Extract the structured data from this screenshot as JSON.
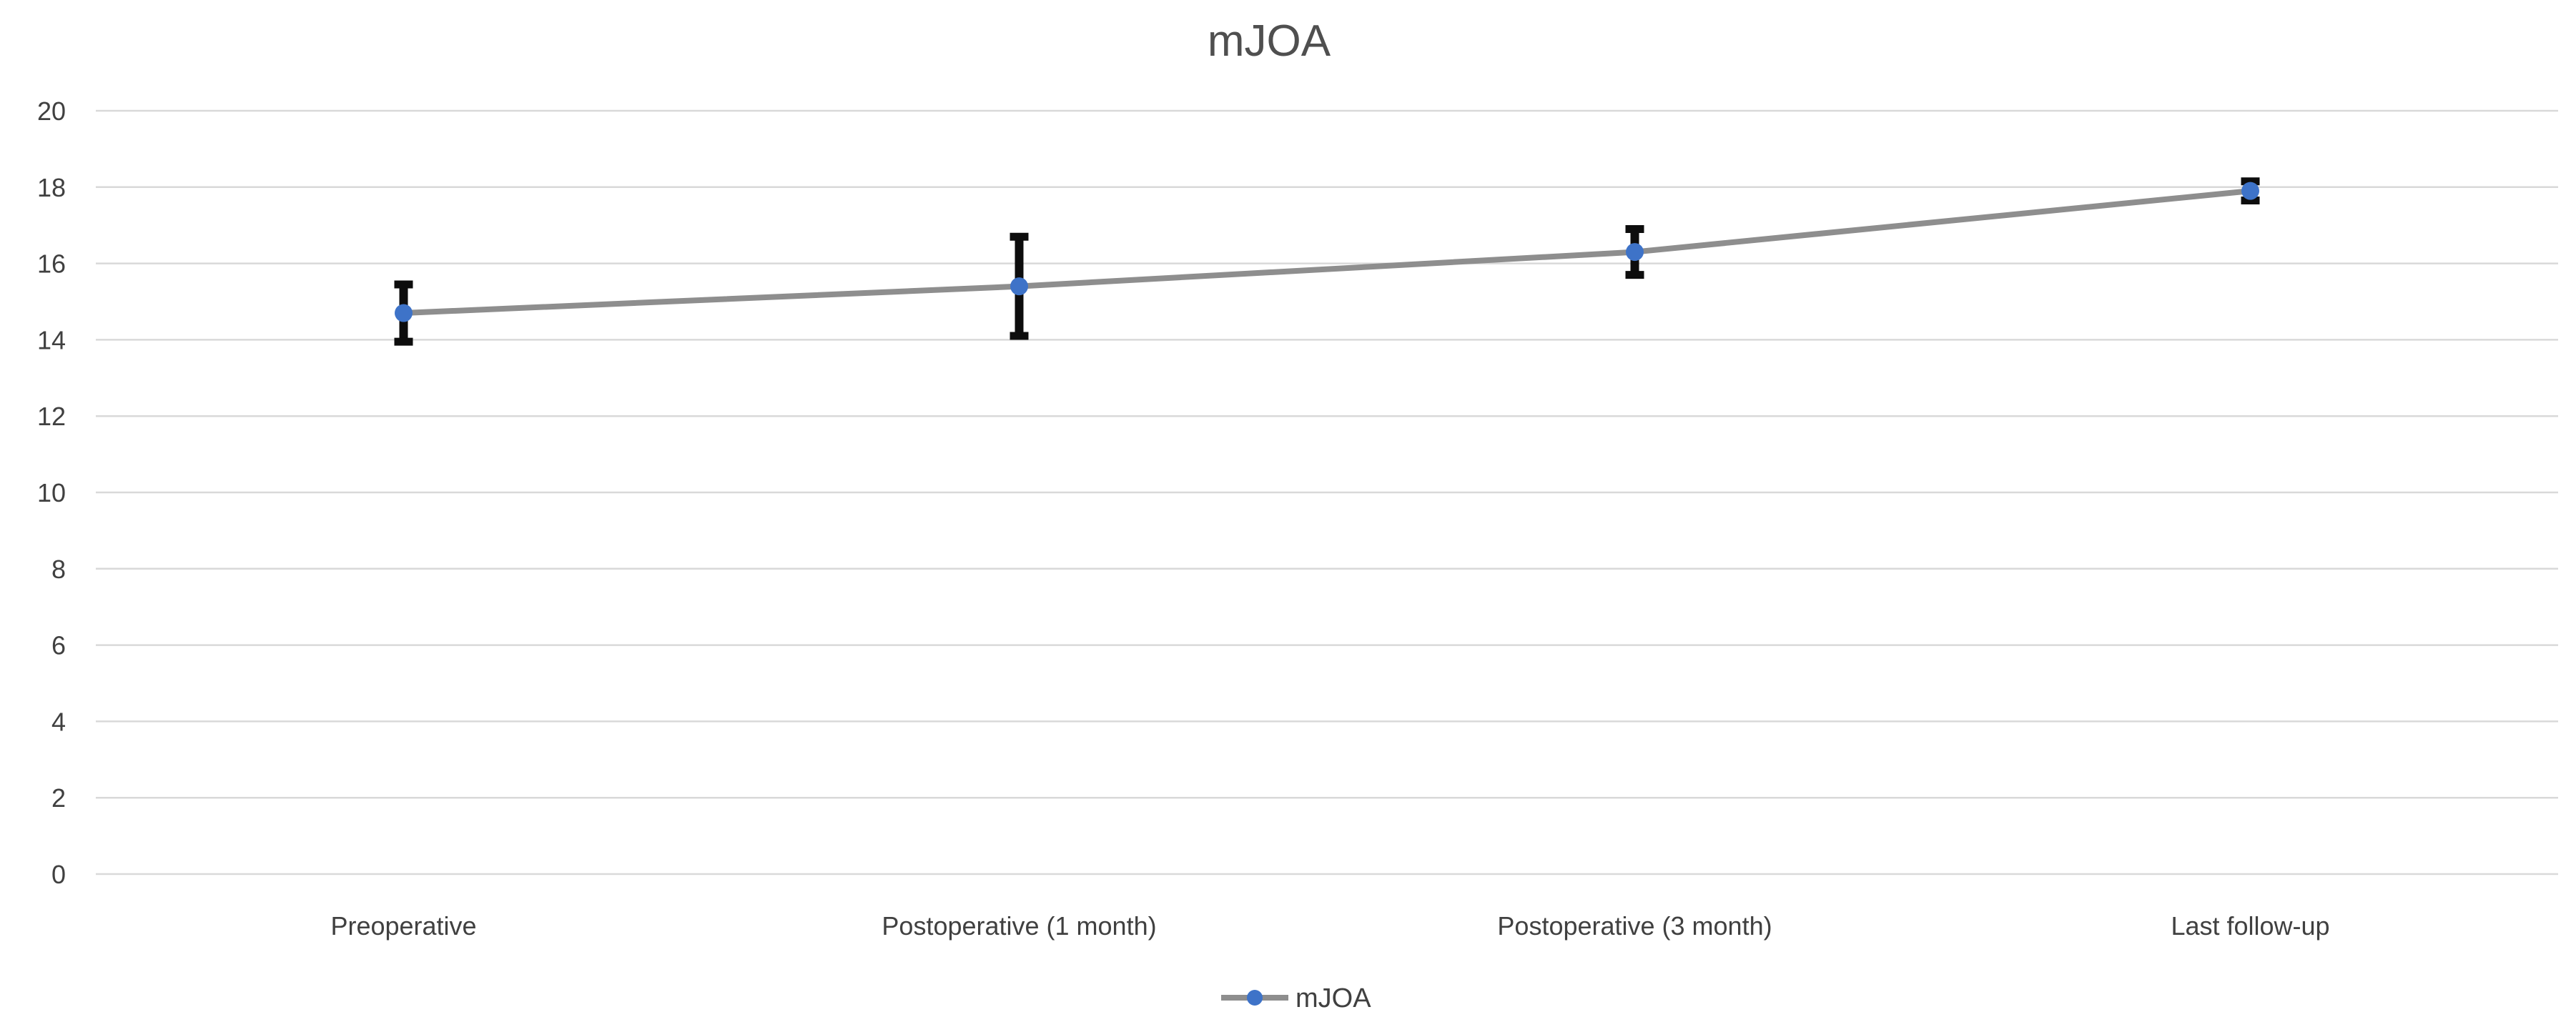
{
  "chart_data": {
    "type": "line",
    "title": "mJOA",
    "categories": [
      "Preoperative",
      "Postoperative (1 month)",
      "Postoperative (3 month)",
      "Last follow-up"
    ],
    "series": [
      {
        "name": "mJOA",
        "values": [
          14.7,
          15.4,
          16.3,
          17.9
        ],
        "error_minus": [
          0.75,
          1.3,
          0.6,
          0.25
        ],
        "error_plus": [
          0.75,
          1.3,
          0.6,
          0.25
        ]
      }
    ],
    "xlabel": "",
    "ylabel": "",
    "ylim": [
      0,
      20
    ],
    "y_tick_step": 2,
    "y_tick_labels": [
      "0",
      "2",
      "4",
      "6",
      "8",
      "10",
      "12",
      "14",
      "16",
      "18",
      "20"
    ],
    "grid": "horizontal-only",
    "legend_position": "bottom-center"
  },
  "colors": {
    "background": "#ffffff",
    "gridline": "#d9d9d9",
    "series_line": "#8e8e8e",
    "marker": "#3e73c8",
    "error_bar": "#0d0d0d",
    "title_text": "#4f4f4f",
    "axis_text": "#404040",
    "legend_text": "#404040"
  }
}
